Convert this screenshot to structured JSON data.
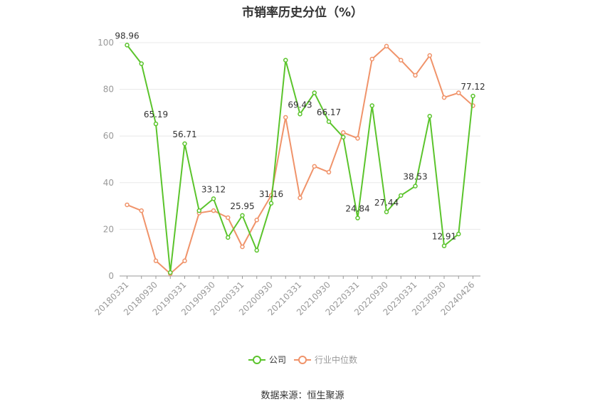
{
  "chart_data": {
    "type": "line",
    "title": "市销率历史分位（%）",
    "source": "数据来源：恒生聚源",
    "ylim": [
      0,
      100
    ],
    "yticks": [
      0,
      20,
      40,
      60,
      80,
      100
    ],
    "grid": true,
    "legend_position": "bottom",
    "x_tick_labels": [
      "20180331",
      "20180930",
      "20190331",
      "20190930",
      "20200331",
      "20200930",
      "20210331",
      "20210930",
      "20220331",
      "20220930",
      "20230331",
      "20230930",
      "20240426"
    ],
    "x": [
      "20180331",
      "20180630",
      "20180930",
      "20181231",
      "20190331",
      "20190630",
      "20190930",
      "20191231",
      "20200331",
      "20200630",
      "20200930",
      "20201231",
      "20210331",
      "20210630",
      "20210930",
      "20211231",
      "20220331",
      "20220630",
      "20220930",
      "20221231",
      "20230331",
      "20230630",
      "20230930",
      "20231231",
      "20240426"
    ],
    "series": [
      {
        "name": "公司",
        "color": "#5bc42c",
        "values": [
          98.96,
          91.0,
          65.19,
          1.5,
          56.71,
          28.0,
          33.12,
          16.5,
          25.95,
          11.0,
          31.16,
          92.5,
          69.43,
          78.5,
          66.17,
          59.5,
          24.84,
          73.0,
          27.44,
          34.5,
          38.53,
          68.5,
          12.91,
          18.0,
          77.12
        ],
        "data_labels": {
          "0": "98.96",
          "2": "65.19",
          "4": "56.71",
          "6": "33.12",
          "8": "25.95",
          "10": "31.16",
          "12": "69.43",
          "14": "66.17",
          "16": "24.84",
          "18": "27.44",
          "20": "38.53",
          "22": "12.91",
          "24": "77.12"
        }
      },
      {
        "name": "行业中位数",
        "color": "#f0936a",
        "values": [
          30.5,
          28.0,
          6.5,
          1.0,
          6.5,
          27.0,
          28.0,
          25.0,
          12.5,
          24.0,
          34.5,
          68.0,
          33.5,
          47.0,
          44.5,
          61.5,
          59.0,
          93.0,
          98.5,
          92.5,
          86.0,
          94.5,
          76.5,
          78.5,
          73.0
        ]
      }
    ]
  }
}
